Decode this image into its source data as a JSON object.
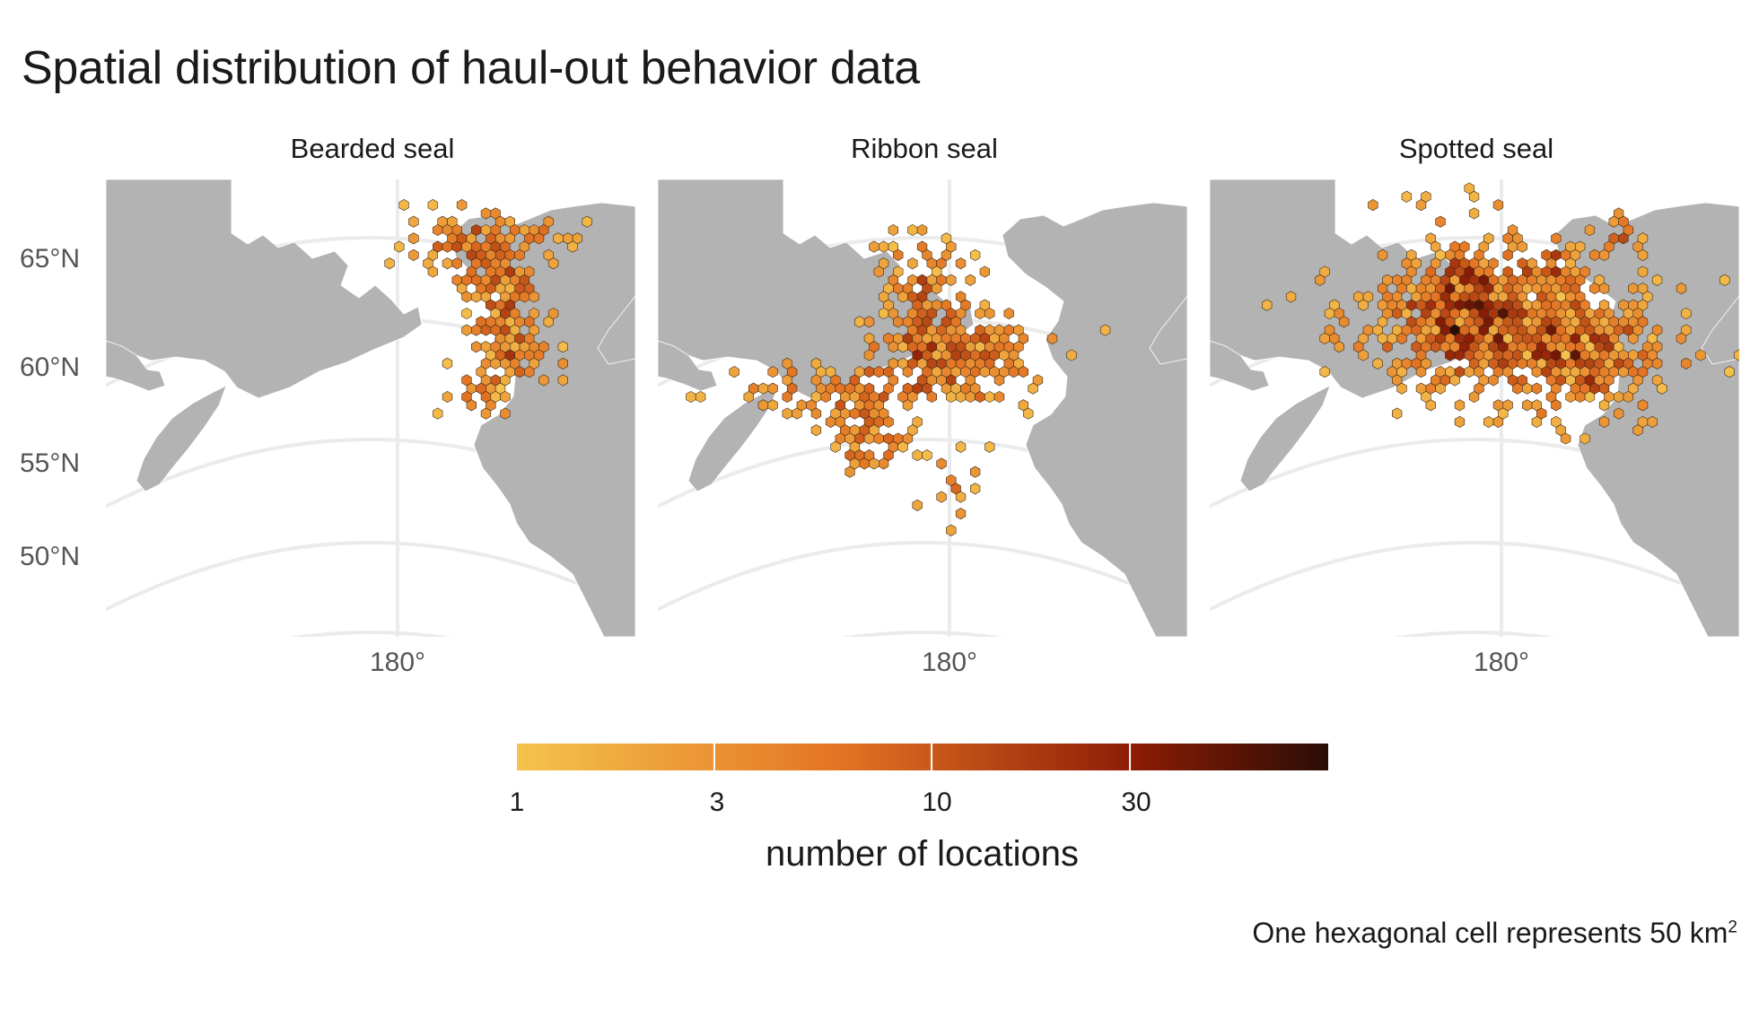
{
  "title": "Spatial distribution of haul-out behavior data",
  "facets": [
    "Bearded seal",
    "Ribbon seal",
    "Spotted seal"
  ],
  "axes": {
    "lat_labels": [
      "65°N",
      "60°N",
      "55°N",
      "50°N"
    ],
    "lon_label": "180°"
  },
  "colors": {
    "land": "#b3b3b3",
    "graticule": "#ebebeb",
    "scale_low": "#f5c34d",
    "scale_mid": "#e37323",
    "scale_high": "#8e1c06",
    "scale_max": "#2a0d05"
  },
  "legend": {
    "title": "number of locations",
    "tick_labels": [
      "1",
      "3",
      "10",
      "30"
    ],
    "tick_values": [
      1,
      3,
      10,
      30
    ],
    "range": [
      1,
      90
    ],
    "scale": "log"
  },
  "caption": {
    "text": "One hexagonal cell represents 50 km",
    "superscript": "2"
  },
  "chart_data": {
    "type": "heatmap",
    "title": "Spatial distribution of haul-out behavior data",
    "facets": [
      "Bearded seal",
      "Ribbon seal",
      "Spotted seal"
    ],
    "bin": "hexagon",
    "cell_area_km2": 50,
    "fill_label": "number of locations",
    "fill_scale": "log",
    "fill_breaks": [
      1,
      3,
      10,
      30
    ],
    "lat_ticks": [
      50,
      55,
      60,
      65
    ],
    "lon_ticks": [
      180
    ],
    "grid": true,
    "legend_position": "bottom"
  }
}
